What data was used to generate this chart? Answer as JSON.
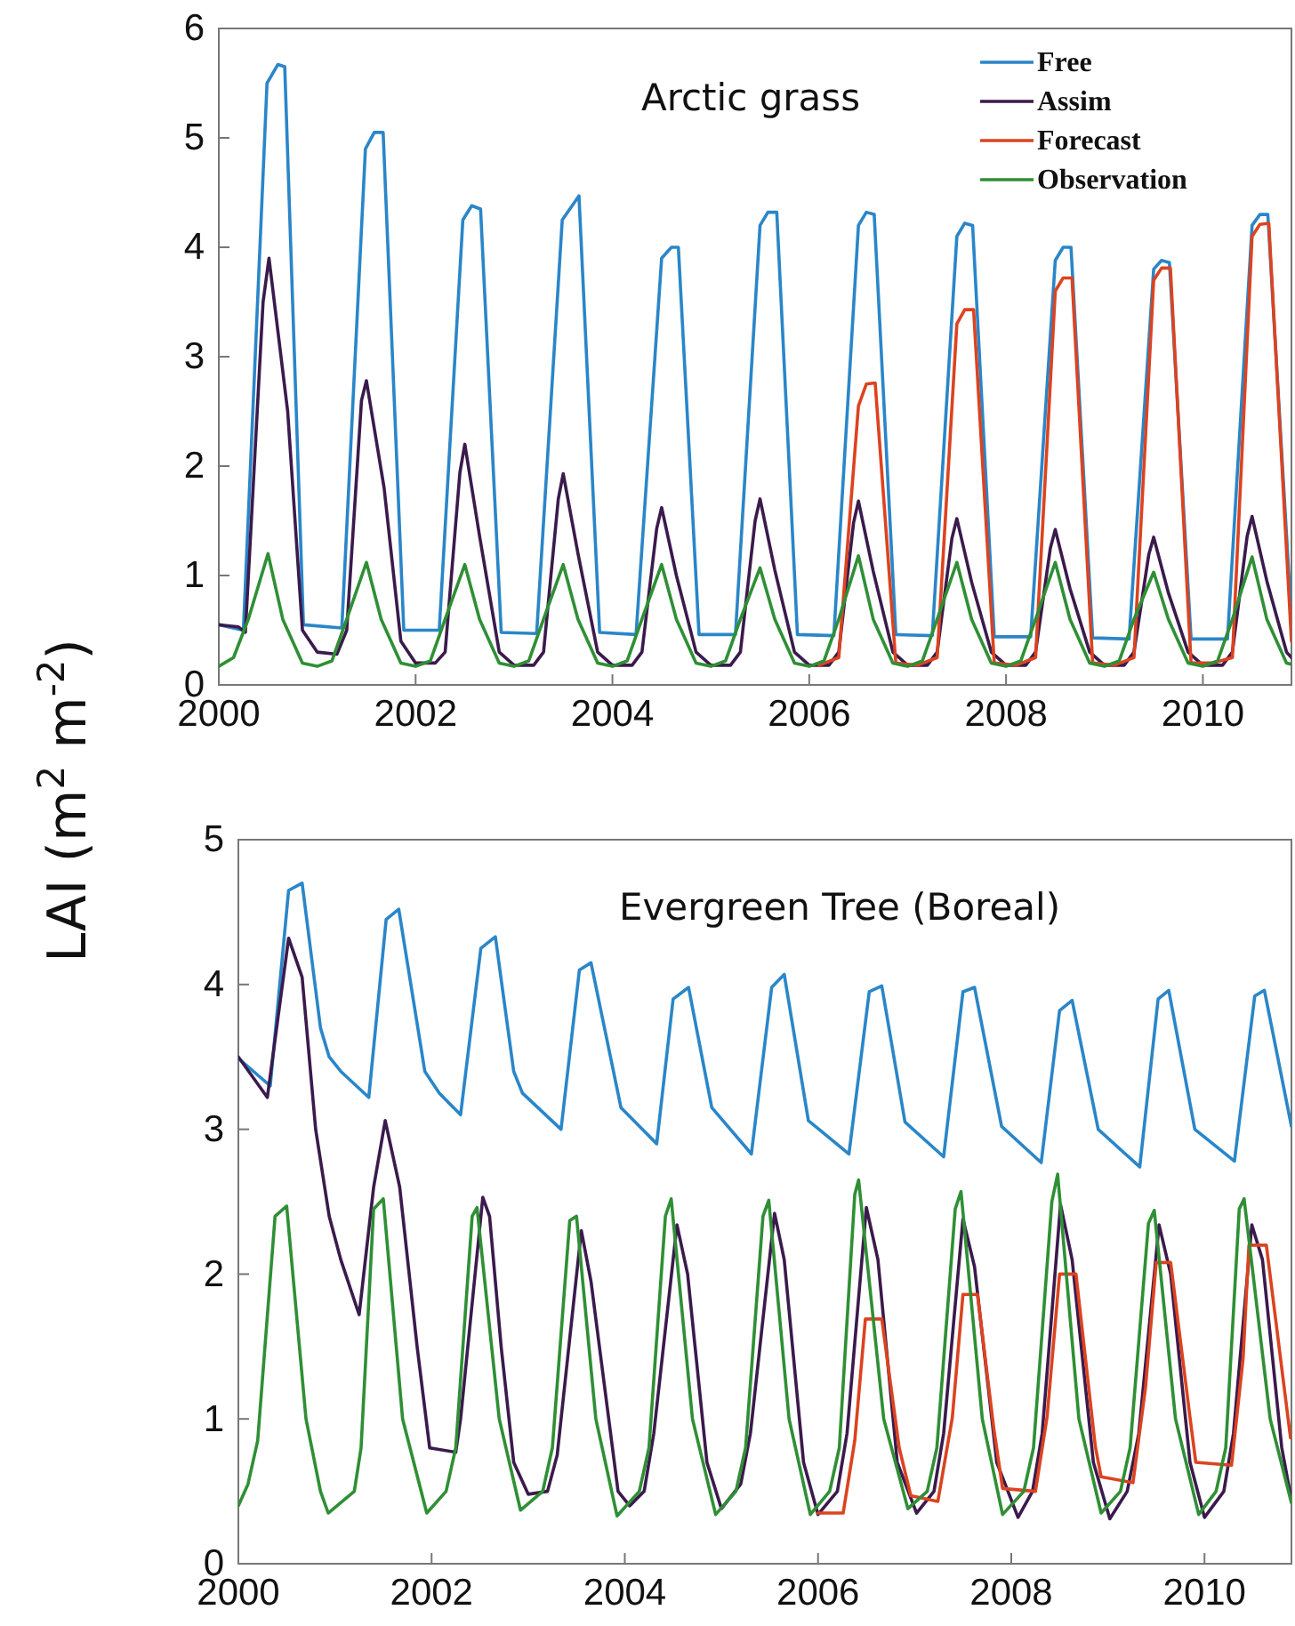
{
  "chart_data": [
    {
      "type": "line",
      "title": "Arctic grass",
      "ylabel": "LAI (m$^{2}$ m$^{-2}$)",
      "xlim": [
        2000,
        2010.9
      ],
      "xticks": [
        2000,
        2002,
        2004,
        2006,
        2008,
        2010
      ],
      "ylim": [
        0,
        6
      ],
      "yticks": [
        0,
        1,
        2,
        3,
        4,
        5,
        6
      ],
      "grid": false,
      "legend": "top right",
      "line_style": "solid",
      "marker": "none",
      "series": [
        {
          "name": "Free",
          "color": "#2a86c8",
          "x": [
            2000,
            2000.25,
            2000.49,
            2000.6,
            2000.67,
            2000.86,
            2001.25,
            2001.49,
            2001.58,
            2001.67,
            2001.88,
            2002.24,
            2002.48,
            2002.57,
            2002.66,
            2002.87,
            2003.23,
            2003.49,
            2003.66,
            2003.87,
            2004.24,
            2004.5,
            2004.6,
            2004.67,
            2004.88,
            2005.25,
            2005.5,
            2005.58,
            2005.67,
            2005.88,
            2006.25,
            2006.5,
            2006.58,
            2006.66,
            2006.88,
            2007.25,
            2007.5,
            2007.58,
            2007.66,
            2007.88,
            2008.25,
            2008.5,
            2008.58,
            2008.66,
            2008.88,
            2009.25,
            2009.5,
            2009.58,
            2009.66,
            2009.88,
            2010.25,
            2010.5,
            2010.58,
            2010.66,
            2010.9
          ],
          "values": [
            0.55,
            0.5,
            5.5,
            5.67,
            5.65,
            0.55,
            0.52,
            4.9,
            5.05,
            5.05,
            0.5,
            0.5,
            4.25,
            4.38,
            4.35,
            0.48,
            0.47,
            4.25,
            4.47,
            0.48,
            0.46,
            3.9,
            4.0,
            4.0,
            0.46,
            0.46,
            4.2,
            4.32,
            4.32,
            0.46,
            0.45,
            4.2,
            4.32,
            4.3,
            0.46,
            0.45,
            4.1,
            4.22,
            4.2,
            0.44,
            0.44,
            3.88,
            4.0,
            4.0,
            0.43,
            0.42,
            3.8,
            3.88,
            3.86,
            0.42,
            0.42,
            4.2,
            4.3,
            4.3,
            0.6
          ]
        },
        {
          "name": "Assim",
          "color": "#3b1a4c",
          "x": [
            2000,
            2000.2,
            2000.27,
            2000.45,
            2000.51,
            2000.7,
            2000.85,
            2001.0,
            2001.2,
            2001.3,
            2001.45,
            2001.5,
            2001.68,
            2001.85,
            2002.0,
            2002.2,
            2002.3,
            2002.45,
            2002.5,
            2002.65,
            2002.85,
            2003.0,
            2003.2,
            2003.3,
            2003.45,
            2003.5,
            2003.65,
            2003.85,
            2004.0,
            2004.2,
            2004.3,
            2004.45,
            2004.5,
            2004.65,
            2004.85,
            2005.0,
            2005.2,
            2005.3,
            2005.45,
            2005.5,
            2005.65,
            2005.85,
            2006.0,
            2006.2,
            2006.3,
            2006.45,
            2006.5,
            2006.65,
            2006.85,
            2007.0,
            2007.2,
            2007.3,
            2007.45,
            2007.5,
            2007.65,
            2007.85,
            2008.0,
            2008.2,
            2008.3,
            2008.45,
            2008.5,
            2008.65,
            2008.85,
            2009.0,
            2009.2,
            2009.3,
            2009.45,
            2009.5,
            2009.65,
            2009.85,
            2010.0,
            2010.2,
            2010.3,
            2010.45,
            2010.5,
            2010.65,
            2010.85,
            2010.9
          ],
          "values": [
            0.55,
            0.53,
            0.48,
            3.5,
            3.9,
            2.5,
            0.5,
            0.3,
            0.28,
            0.5,
            2.6,
            2.78,
            1.8,
            0.4,
            0.2,
            0.2,
            0.3,
            1.94,
            2.2,
            1.36,
            0.3,
            0.18,
            0.18,
            0.3,
            1.7,
            1.93,
            1.2,
            0.3,
            0.18,
            0.18,
            0.3,
            1.43,
            1.62,
            1.0,
            0.3,
            0.18,
            0.18,
            0.3,
            1.5,
            1.7,
            1.05,
            0.3,
            0.18,
            0.18,
            0.3,
            1.48,
            1.68,
            1.04,
            0.3,
            0.18,
            0.18,
            0.3,
            1.34,
            1.52,
            0.94,
            0.3,
            0.18,
            0.18,
            0.3,
            1.25,
            1.42,
            0.88,
            0.3,
            0.18,
            0.18,
            0.3,
            1.19,
            1.35,
            0.84,
            0.3,
            0.18,
            0.18,
            0.3,
            1.36,
            1.54,
            0.95,
            0.3,
            0.25
          ]
        },
        {
          "name": "Forecast",
          "color": "#dc4320",
          "x": [
            2006.1,
            2006.3,
            2006.5,
            2006.58,
            2006.67,
            2006.88,
            2007.1,
            2007.3,
            2007.5,
            2007.58,
            2007.67,
            2007.88,
            2008.1,
            2008.3,
            2008.5,
            2008.58,
            2008.67,
            2008.88,
            2009.1,
            2009.3,
            2009.5,
            2009.58,
            2009.67,
            2009.88,
            2010.1,
            2010.3,
            2010.5,
            2010.58,
            2010.67,
            2010.9
          ],
          "values": [
            0.18,
            0.25,
            2.55,
            2.75,
            2.76,
            0.2,
            0.18,
            0.25,
            3.3,
            3.43,
            3.43,
            0.2,
            0.18,
            0.25,
            3.6,
            3.72,
            3.72,
            0.2,
            0.18,
            0.25,
            3.7,
            3.81,
            3.81,
            0.2,
            0.2,
            0.25,
            4.1,
            4.21,
            4.22,
            0.4
          ]
        },
        {
          "name": "Observation",
          "color": "#2f8f35",
          "x": [
            2000,
            2000.15,
            2000.3,
            2000.5,
            2000.65,
            2000.85,
            2001.0,
            2001.15,
            2001.3,
            2001.5,
            2001.65,
            2001.85,
            2002.0,
            2002.15,
            2002.3,
            2002.5,
            2002.65,
            2002.85,
            2003.0,
            2003.15,
            2003.3,
            2003.5,
            2003.65,
            2003.85,
            2004.0,
            2004.15,
            2004.3,
            2004.5,
            2004.65,
            2004.85,
            2005.0,
            2005.15,
            2005.3,
            2005.5,
            2005.65,
            2005.85,
            2006.0,
            2006.15,
            2006.3,
            2006.5,
            2006.65,
            2006.85,
            2007.0,
            2007.15,
            2007.3,
            2007.5,
            2007.65,
            2007.85,
            2008.0,
            2008.15,
            2008.3,
            2008.5,
            2008.65,
            2008.85,
            2009.0,
            2009.15,
            2009.3,
            2009.5,
            2009.65,
            2009.85,
            2010.0,
            2010.15,
            2010.3,
            2010.5,
            2010.65,
            2010.85,
            2010.9
          ],
          "values": [
            0.17,
            0.25,
            0.6,
            1.2,
            0.6,
            0.2,
            0.17,
            0.22,
            0.6,
            1.12,
            0.6,
            0.2,
            0.17,
            0.22,
            0.6,
            1.1,
            0.6,
            0.2,
            0.17,
            0.22,
            0.6,
            1.1,
            0.6,
            0.2,
            0.17,
            0.22,
            0.6,
            1.1,
            0.6,
            0.2,
            0.17,
            0.22,
            0.6,
            1.07,
            0.6,
            0.2,
            0.17,
            0.22,
            0.6,
            1.18,
            0.6,
            0.2,
            0.17,
            0.22,
            0.6,
            1.12,
            0.6,
            0.2,
            0.17,
            0.22,
            0.6,
            1.12,
            0.6,
            0.2,
            0.17,
            0.22,
            0.6,
            1.03,
            0.6,
            0.2,
            0.17,
            0.22,
            0.6,
            1.17,
            0.6,
            0.2,
            0.19
          ]
        }
      ]
    },
    {
      "type": "line",
      "title": "Evergreen Tree (Boreal)",
      "xlim": [
        2000,
        2010.9
      ],
      "xticks": [
        2000,
        2002,
        2004,
        2006,
        2008,
        2010
      ],
      "ylim": [
        0,
        5
      ],
      "yticks": [
        0,
        1,
        2,
        3,
        4,
        5
      ],
      "grid": false,
      "line_style": "solid",
      "marker": "none",
      "series": [
        {
          "color": "#2a86c8",
          "x": [
            2000,
            2000.33,
            2000.52,
            2000.66,
            2000.85,
            2000.94,
            2001.06,
            2001.35,
            2001.53,
            2001.66,
            2001.93,
            2002.08,
            2002.3,
            2002.51,
            2002.66,
            2002.85,
            2002.94,
            2003.34,
            2003.53,
            2003.65,
            2003.96,
            2004.33,
            2004.5,
            2004.66,
            2004.9,
            2005.31,
            2005.52,
            2005.65,
            2005.9,
            2006.32,
            2006.53,
            2006.66,
            2006.9,
            2007.3,
            2007.5,
            2007.62,
            2007.9,
            2008.31,
            2008.5,
            2008.63,
            2008.9,
            2009.33,
            2009.52,
            2009.63,
            2009.9,
            2010.31,
            2010.52,
            2010.62,
            2010.9
          ],
          "values": [
            3.49,
            3.3,
            4.65,
            4.7,
            3.7,
            3.5,
            3.4,
            3.22,
            4.45,
            4.52,
            3.4,
            3.25,
            3.1,
            4.25,
            4.33,
            3.4,
            3.25,
            3.0,
            4.1,
            4.15,
            3.15,
            2.9,
            3.9,
            3.98,
            3.15,
            2.83,
            3.98,
            4.07,
            3.06,
            2.83,
            3.95,
            3.99,
            3.05,
            2.81,
            3.95,
            3.98,
            3.02,
            2.77,
            3.82,
            3.89,
            3.0,
            2.74,
            3.9,
            3.96,
            3.0,
            2.78,
            3.92,
            3.96,
            3.02
          ]
        },
        {
          "color": "#3b1a4c",
          "x": [
            2000,
            2000.3,
            2000.52,
            2000.66,
            2000.8,
            2000.94,
            2001.06,
            2001.25,
            2001.4,
            2001.52,
            2001.67,
            2001.85,
            2001.98,
            2002.25,
            2002.3,
            2002.53,
            2002.6,
            2002.72,
            2002.85,
            2003.0,
            2003.2,
            2003.3,
            2003.55,
            2003.65,
            2003.93,
            2004.05,
            2004.2,
            2004.3,
            2004.54,
            2004.65,
            2004.85,
            2005.0,
            2005.2,
            2005.3,
            2005.55,
            2005.65,
            2005.85,
            2006.0,
            2006.2,
            2006.3,
            2006.5,
            2006.62,
            2006.82,
            2007.02,
            2007.2,
            2007.3,
            2007.5,
            2007.62,
            2007.85,
            2008.07,
            2008.22,
            2008.32,
            2008.51,
            2008.63,
            2008.85,
            2009.02,
            2009.2,
            2009.32,
            2009.53,
            2009.65,
            2009.85,
            2010.0,
            2010.2,
            2010.3,
            2010.49,
            2010.6,
            2010.8,
            2010.9
          ],
          "values": [
            3.5,
            3.22,
            4.32,
            4.05,
            3.0,
            2.4,
            2.1,
            1.72,
            2.6,
            3.06,
            2.6,
            1.5,
            0.8,
            0.77,
            1.0,
            2.53,
            2.4,
            1.5,
            0.7,
            0.48,
            0.5,
            0.75,
            2.3,
            1.95,
            0.5,
            0.4,
            0.5,
            0.9,
            2.34,
            2.0,
            0.7,
            0.38,
            0.55,
            0.9,
            2.42,
            2.1,
            0.7,
            0.34,
            0.5,
            0.9,
            2.46,
            2.1,
            0.7,
            0.35,
            0.5,
            0.9,
            2.38,
            2.05,
            0.7,
            0.32,
            0.5,
            0.9,
            2.48,
            2.1,
            0.7,
            0.31,
            0.5,
            0.9,
            2.34,
            2.0,
            0.7,
            0.32,
            0.5,
            0.9,
            2.34,
            2.1,
            0.8,
            0.44
          ]
        },
        {
          "color": "#dc4320",
          "x": [
            2006.0,
            2006.26,
            2006.38,
            2006.49,
            2006.66,
            2006.84,
            2006.96,
            2007.24,
            2007.39,
            2007.5,
            2007.65,
            2007.82,
            2007.91,
            2008.25,
            2008.37,
            2008.5,
            2008.67,
            2008.87,
            2008.93,
            2009.26,
            2009.39,
            2009.5,
            2009.65,
            2009.85,
            2009.91,
            2010.28,
            2010.4,
            2010.46,
            2010.64,
            2010.89
          ],
          "values": [
            0.35,
            0.35,
            0.85,
            1.69,
            1.69,
            0.8,
            0.47,
            0.43,
            1.01,
            1.86,
            1.86,
            0.93,
            0.52,
            0.5,
            1.01,
            2.0,
            2.0,
            0.81,
            0.6,
            0.56,
            1.22,
            2.08,
            2.08,
            1.01,
            0.7,
            0.68,
            1.42,
            2.2,
            2.2,
            0.87
          ]
        },
        {
          "color": "#2f8f35",
          "x": [
            2000,
            2000.1,
            2000.2,
            2000.38,
            2000.5,
            2000.7,
            2000.85,
            2000.93,
            2001.2,
            2001.27,
            2001.4,
            2001.5,
            2001.7,
            2001.95,
            2002.15,
            2002.25,
            2002.42,
            2002.47,
            2002.7,
            2002.92,
            2003.15,
            2003.25,
            2003.43,
            2003.5,
            2003.7,
            2003.92,
            2004.15,
            2004.25,
            2004.42,
            2004.48,
            2004.7,
            2004.94,
            2005.15,
            2005.25,
            2005.43,
            2005.49,
            2005.7,
            2005.92,
            2006.12,
            2006.22,
            2006.38,
            2006.42,
            2006.68,
            2006.93,
            2007.13,
            2007.23,
            2007.42,
            2007.48,
            2007.7,
            2007.91,
            2008.13,
            2008.23,
            2008.42,
            2008.48,
            2008.7,
            2008.93,
            2009.13,
            2009.23,
            2009.42,
            2009.48,
            2009.7,
            2009.94,
            2010.12,
            2010.22,
            2010.36,
            2010.41,
            2010.68,
            2010.9
          ],
          "values": [
            0.4,
            0.55,
            0.85,
            2.4,
            2.47,
            1.0,
            0.5,
            0.35,
            0.5,
            0.8,
            2.45,
            2.52,
            1.0,
            0.35,
            0.5,
            0.8,
            2.4,
            2.46,
            1.0,
            0.37,
            0.5,
            0.8,
            2.37,
            2.4,
            1.0,
            0.33,
            0.5,
            0.8,
            2.4,
            2.52,
            1.0,
            0.34,
            0.5,
            0.8,
            2.4,
            2.51,
            1.0,
            0.34,
            0.5,
            0.8,
            2.55,
            2.65,
            1.0,
            0.38,
            0.5,
            0.8,
            2.45,
            2.57,
            1.0,
            0.34,
            0.5,
            0.8,
            2.5,
            2.69,
            1.0,
            0.35,
            0.5,
            0.8,
            2.35,
            2.44,
            1.0,
            0.34,
            0.5,
            0.8,
            2.45,
            2.52,
            1.0,
            0.42
          ]
        }
      ]
    }
  ]
}
